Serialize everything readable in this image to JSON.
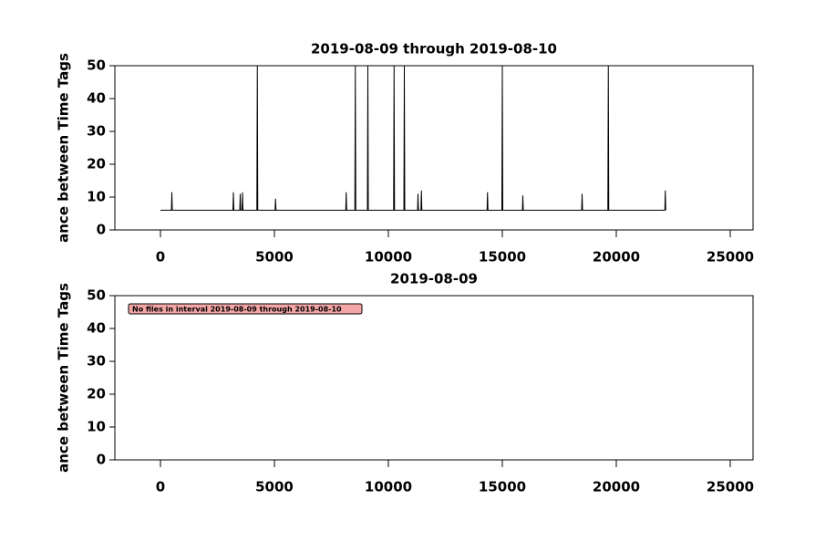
{
  "chart_data": [
    {
      "type": "line",
      "title": "2019-08-09 through 2019-08-10",
      "y_label": "ance between Time Tags",
      "xlim": [
        -2000,
        26000
      ],
      "ylim": [
        0,
        50
      ],
      "xticks": [
        0,
        5000,
        10000,
        15000,
        20000,
        25000
      ],
      "yticks": [
        0,
        10,
        20,
        30,
        40,
        50
      ],
      "series": [
        {
          "color": "#000000",
          "x": [
            0,
            480,
            500,
            520,
            3180,
            3200,
            3220,
            3480,
            3500,
            3520,
            3580,
            3600,
            3620,
            4230,
            4250,
            4270,
            5030,
            5050,
            5070,
            8130,
            8150,
            8170,
            8530,
            8550,
            8570,
            9080,
            9100,
            9120,
            10230,
            10250,
            10270,
            10680,
            10700,
            10720,
            11280,
            11300,
            11320,
            11430,
            11450,
            11470,
            14330,
            14350,
            14370,
            14980,
            15000,
            15020,
            15880,
            15900,
            15920,
            18480,
            18500,
            18520,
            19630,
            19650,
            19670,
            22130,
            22150,
            22170
          ],
          "values": [
            6,
            6,
            11.5,
            6,
            6,
            11.5,
            6,
            6,
            11,
            6,
            6,
            11.5,
            6,
            6,
            50,
            6,
            6,
            9.5,
            6,
            6,
            11.5,
            6,
            6,
            50,
            6,
            6,
            50,
            6,
            6,
            50,
            6,
            6,
            50,
            6,
            6,
            11,
            6,
            6,
            12,
            6,
            6,
            11.5,
            6,
            6,
            50,
            6,
            6,
            10.5,
            6,
            6,
            11,
            6,
            6,
            50,
            6,
            6,
            12,
            6
          ]
        }
      ]
    },
    {
      "type": "line",
      "title": "2019-08-09",
      "y_label": "ance between Time Tags",
      "xlim": [
        -2000,
        26000
      ],
      "ylim": [
        0,
        50
      ],
      "xticks": [
        0,
        5000,
        10000,
        15000,
        20000,
        25000
      ],
      "yticks": [
        0,
        10,
        20,
        30,
        40,
        50
      ],
      "annotation": "No files in interval 2019-08-09 through 2019-08-10",
      "series": []
    }
  ]
}
